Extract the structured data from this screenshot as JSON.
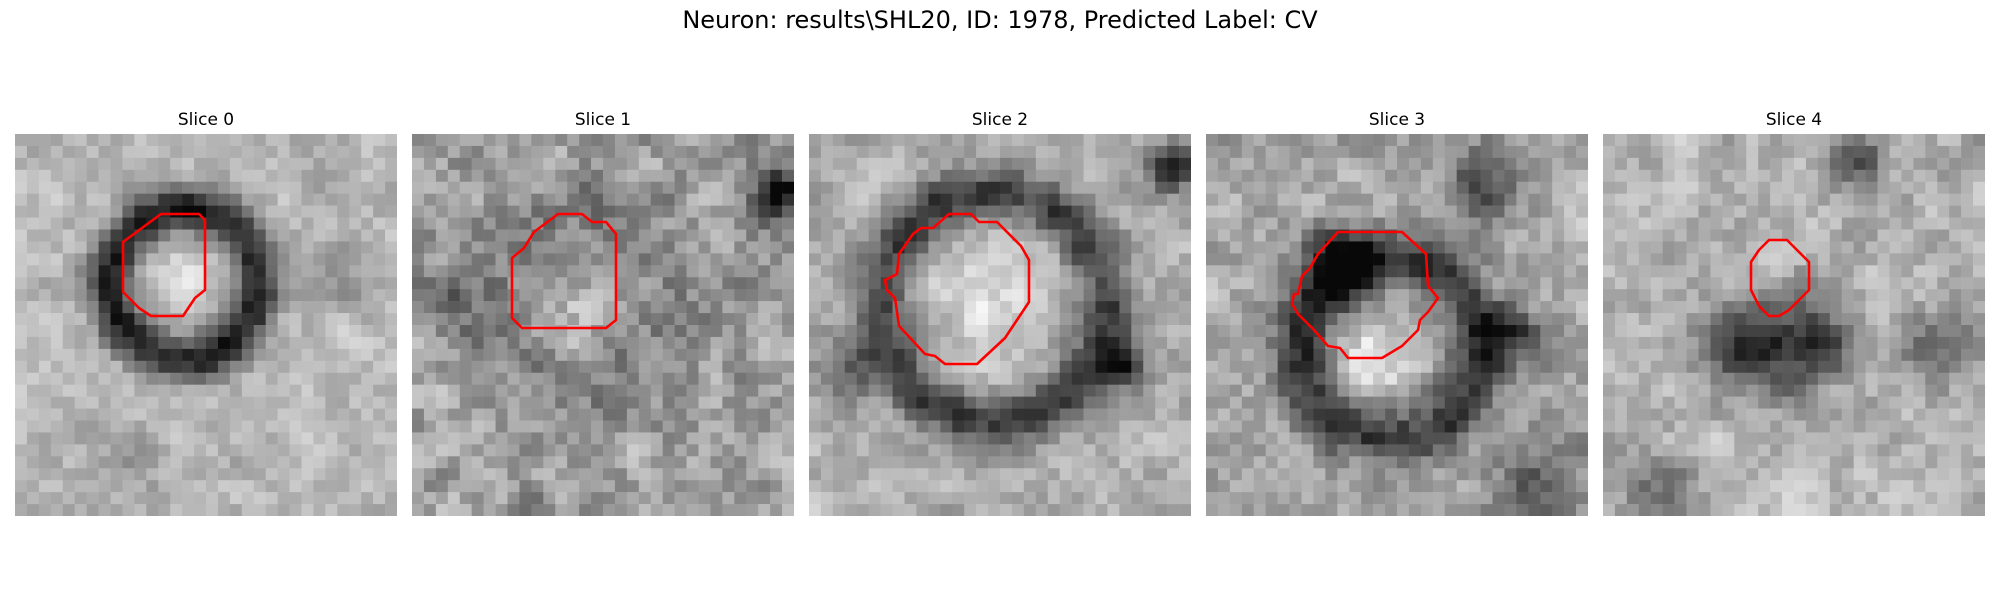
{
  "figure": {
    "title": "Neuron: results\\SHL20, ID: 1978, Predicted Label: CV"
  },
  "slices": [
    {
      "label": "Slice 0"
    },
    {
      "label": "Slice 1"
    },
    {
      "label": "Slice 2"
    },
    {
      "label": "Slice 3"
    },
    {
      "label": "Slice 4"
    }
  ],
  "colors": {
    "contour": "#ff0000",
    "background": "#ffffff"
  }
}
